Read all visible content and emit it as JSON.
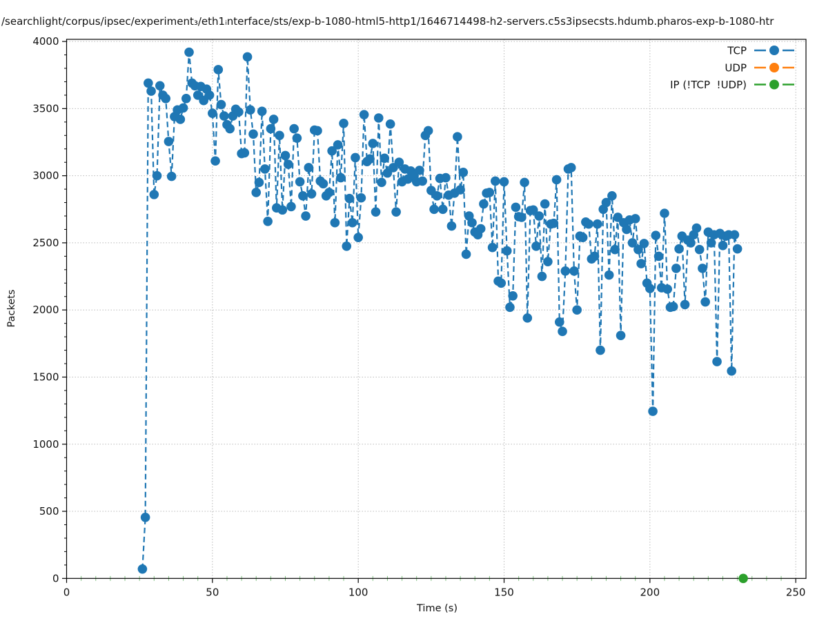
{
  "chart_data": {
    "type": "line",
    "title": "/searchlight/corpus/ipsec/experiment₃/eth1ᵢnterface/sts/exp-b-1080-html5-http1/1646714498-h2-servers.c5s3ipsecsts.hdumb.pharos-exp-b-1080-htr",
    "xlabel": "Time (s)",
    "ylabel": "Packets",
    "xlim": [
      0,
      253
    ],
    "ylim": [
      0,
      4016
    ],
    "xticks": [
      0,
      50,
      100,
      150,
      200,
      250
    ],
    "yticks": [
      0,
      500,
      1000,
      1500,
      2000,
      2500,
      3000,
      3500,
      4000
    ],
    "x_minor_step": 5,
    "y_minor_step": 100,
    "grid": "dotted major gridlines, both axes",
    "legend_position": "upper right, no frame",
    "marker": "filled circle",
    "linestyle": "dashed",
    "series": [
      {
        "name": "TCP",
        "color": "#1f77b4",
        "points": [
          [
            26,
            70
          ],
          [
            27,
            455
          ],
          [
            28,
            3690
          ],
          [
            29,
            3630
          ],
          [
            30,
            2860
          ],
          [
            31,
            3000
          ],
          [
            32,
            3670
          ],
          [
            33,
            3600
          ],
          [
            34,
            3575
          ],
          [
            35,
            3255
          ],
          [
            36,
            2995
          ],
          [
            37,
            3440
          ],
          [
            38,
            3490
          ],
          [
            39,
            3420
          ],
          [
            40,
            3505
          ],
          [
            41,
            3575
          ],
          [
            42,
            3920
          ],
          [
            43,
            3690
          ],
          [
            44,
            3670
          ],
          [
            45,
            3600
          ],
          [
            46,
            3665
          ],
          [
            47,
            3560
          ],
          [
            48,
            3645
          ],
          [
            49,
            3600
          ],
          [
            50,
            3465
          ],
          [
            51,
            3110
          ],
          [
            52,
            3790
          ],
          [
            53,
            3530
          ],
          [
            54,
            3445
          ],
          [
            55,
            3380
          ],
          [
            56,
            3350
          ],
          [
            57,
            3445
          ],
          [
            58,
            3495
          ],
          [
            59,
            3475
          ],
          [
            60,
            3165
          ],
          [
            61,
            3170
          ],
          [
            62,
            3885
          ],
          [
            63,
            3490
          ],
          [
            64,
            3310
          ],
          [
            65,
            2875
          ],
          [
            66,
            2950
          ],
          [
            67,
            3480
          ],
          [
            68,
            3050
          ],
          [
            69,
            2660
          ],
          [
            70,
            3350
          ],
          [
            71,
            3420
          ],
          [
            72,
            2760
          ],
          [
            73,
            3300
          ],
          [
            74,
            2745
          ],
          [
            75,
            3150
          ],
          [
            76,
            3085
          ],
          [
            77,
            2770
          ],
          [
            78,
            3350
          ],
          [
            79,
            3280
          ],
          [
            80,
            2955
          ],
          [
            81,
            2850
          ],
          [
            82,
            2700
          ],
          [
            83,
            3060
          ],
          [
            84,
            2865
          ],
          [
            85,
            3340
          ],
          [
            86,
            3335
          ],
          [
            87,
            2960
          ],
          [
            88,
            2940
          ],
          [
            89,
            2850
          ],
          [
            90,
            2875
          ],
          [
            91,
            3185
          ],
          [
            92,
            2650
          ],
          [
            93,
            3230
          ],
          [
            94,
            2985
          ],
          [
            95,
            3390
          ],
          [
            96,
            2475
          ],
          [
            97,
            2830
          ],
          [
            98,
            2650
          ],
          [
            99,
            3135
          ],
          [
            100,
            2540
          ],
          [
            101,
            2835
          ],
          [
            102,
            3455
          ],
          [
            103,
            3105
          ],
          [
            104,
            3125
          ],
          [
            105,
            3240
          ],
          [
            106,
            2730
          ],
          [
            107,
            3430
          ],
          [
            108,
            2950
          ],
          [
            109,
            3130
          ],
          [
            110,
            3020
          ],
          [
            111,
            3385
          ],
          [
            112,
            3060
          ],
          [
            113,
            2730
          ],
          [
            114,
            3100
          ],
          [
            115,
            2955
          ],
          [
            116,
            3050
          ],
          [
            117,
            2975
          ],
          [
            118,
            3035
          ],
          [
            119,
            3000
          ],
          [
            120,
            2955
          ],
          [
            121,
            3040
          ],
          [
            122,
            2960
          ],
          [
            123,
            3300
          ],
          [
            124,
            3335
          ],
          [
            125,
            2890
          ],
          [
            126,
            2750
          ],
          [
            127,
            2850
          ],
          [
            128,
            2980
          ],
          [
            129,
            2750
          ],
          [
            130,
            2985
          ],
          [
            131,
            2855
          ],
          [
            132,
            2625
          ],
          [
            133,
            2870
          ],
          [
            134,
            3290
          ],
          [
            135,
            2895
          ],
          [
            136,
            3025
          ],
          [
            137,
            2415
          ],
          [
            138,
            2700
          ],
          [
            139,
            2650
          ],
          [
            140,
            2580
          ],
          [
            141,
            2560
          ],
          [
            142,
            2605
          ],
          [
            143,
            2790
          ],
          [
            144,
            2870
          ],
          [
            145,
            2875
          ],
          [
            146,
            2465
          ],
          [
            147,
            2960
          ],
          [
            148,
            2215
          ],
          [
            149,
            2200
          ],
          [
            150,
            2955
          ],
          [
            151,
            2440
          ],
          [
            152,
            2020
          ],
          [
            153,
            2105
          ],
          [
            154,
            2765
          ],
          [
            155,
            2695
          ],
          [
            156,
            2690
          ],
          [
            157,
            2950
          ],
          [
            158,
            1940
          ],
          [
            159,
            2740
          ],
          [
            160,
            2745
          ],
          [
            161,
            2475
          ],
          [
            162,
            2700
          ],
          [
            163,
            2250
          ],
          [
            164,
            2790
          ],
          [
            165,
            2360
          ],
          [
            166,
            2640
          ],
          [
            167,
            2645
          ],
          [
            168,
            2970
          ],
          [
            169,
            1910
          ],
          [
            170,
            1840
          ],
          [
            171,
            2290
          ],
          [
            172,
            3050
          ],
          [
            173,
            3060
          ],
          [
            174,
            2290
          ],
          [
            175,
            2000
          ],
          [
            176,
            2550
          ],
          [
            177,
            2540
          ],
          [
            178,
            2655
          ],
          [
            179,
            2640
          ],
          [
            180,
            2380
          ],
          [
            181,
            2400
          ],
          [
            182,
            2640
          ],
          [
            183,
            1700
          ],
          [
            184,
            2750
          ],
          [
            185,
            2800
          ],
          [
            186,
            2260
          ],
          [
            187,
            2850
          ],
          [
            188,
            2450
          ],
          [
            189,
            2690
          ],
          [
            190,
            1810
          ],
          [
            191,
            2650
          ],
          [
            192,
            2600
          ],
          [
            193,
            2670
          ],
          [
            194,
            2500
          ],
          [
            195,
            2680
          ],
          [
            196,
            2450
          ],
          [
            197,
            2345
          ],
          [
            198,
            2495
          ],
          [
            199,
            2200
          ],
          [
            200,
            2160
          ],
          [
            201,
            1245
          ],
          [
            202,
            2555
          ],
          [
            203,
            2400
          ],
          [
            204,
            2165
          ],
          [
            205,
            2720
          ],
          [
            206,
            2155
          ],
          [
            207,
            2020
          ],
          [
            208,
            2025
          ],
          [
            209,
            2310
          ],
          [
            210,
            2455
          ],
          [
            211,
            2550
          ],
          [
            212,
            2040
          ],
          [
            213,
            2520
          ],
          [
            214,
            2500
          ],
          [
            215,
            2560
          ],
          [
            216,
            2610
          ],
          [
            217,
            2450
          ],
          [
            218,
            2310
          ],
          [
            219,
            2060
          ],
          [
            220,
            2580
          ],
          [
            221,
            2500
          ],
          [
            222,
            2560
          ],
          [
            223,
            1615
          ],
          [
            224,
            2570
          ],
          [
            225,
            2480
          ],
          [
            226,
            2550
          ],
          [
            227,
            2560
          ],
          [
            228,
            1545
          ],
          [
            229,
            2560
          ],
          [
            230,
            2455
          ]
        ]
      },
      {
        "name": "UDP",
        "color": "#ff7f0e",
        "points": []
      },
      {
        "name": "IP (!TCP  !UDP)",
        "color": "#2ca02c",
        "points": [
          [
            232,
            0
          ]
        ]
      }
    ]
  },
  "legend": {
    "items": [
      {
        "label": "TCP",
        "color": "#1f77b4"
      },
      {
        "label": "UDP",
        "color": "#ff7f0e"
      },
      {
        "label": "IP (!TCP  !UDP)",
        "color": "#2ca02c"
      }
    ]
  },
  "style_colors": {
    "spine": "#000000",
    "major_grid": "#b8b8b8",
    "x_minor_tick": "#7cbf7c",
    "tick_label": "#111111"
  }
}
